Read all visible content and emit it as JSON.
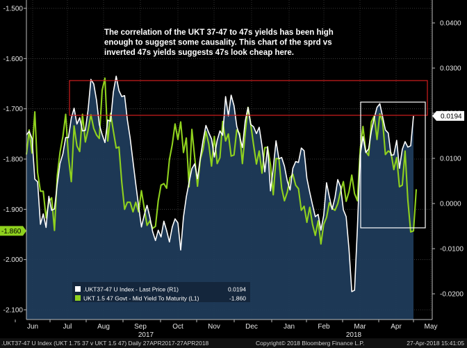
{
  "chart_data": {
    "type": "line",
    "annotation": "The correlation of the UKT 37-47 to 47s yields has been high enough to suggest some causality. This chart of the sprd vs inverted 47s yields suggests 47s look cheap here.",
    "x_axis": {
      "months": [
        "Jun",
        "Jul",
        "Aug",
        "Sep",
        "Oct",
        "Nov",
        "Dec",
        "Jan",
        "Feb",
        "Mar",
        "Apr",
        "May"
      ],
      "years": [
        "2017",
        "2018"
      ]
    },
    "left_axis": {
      "ticks": [
        "-1.500",
        "-1.600",
        "-1.700",
        "-1.800",
        "-1.900",
        "-2.000",
        "-2.100"
      ],
      "range": [
        -1.5,
        -2.1
      ],
      "inverted": true,
      "last_value_label": "-1.860"
    },
    "right_axis": {
      "ticks": [
        "0.0400",
        "0.0300",
        "0.0200",
        "0.0100",
        "0.0000",
        "-0.0100",
        "-0.0200"
      ],
      "range": [
        -0.0245,
        0.0435
      ],
      "last_value_label": "0.0194"
    },
    "legend": [
      {
        "label": ".UKT37-47 U Index - Last Price (R1)",
        "value": "0.0194",
        "color": "#ffffff"
      },
      {
        "label": "UKT 1.5 47 Govt - Mid Yield To Maturity (L1)",
        "value": "-1.860",
        "color": "#8fd11e"
      }
    ],
    "series": [
      {
        "name": ".UKT37-47 U Index - Last Price",
        "axis": "right",
        "color": "#ffffff",
        "values": [
          0.0152,
          0.016,
          0.0144,
          0.0054,
          0.0048,
          -0.0046,
          -0.0023,
          -0.0053,
          0.0016,
          -0.0015,
          -0.0012,
          0.0043,
          0.0089,
          0.011,
          0.0146,
          0.0146,
          0.0189,
          0.0211,
          0.0176,
          0.019,
          0.0161,
          0.0162,
          0.0208,
          0.0275,
          0.0265,
          0.0229,
          0.0175,
          0.0153,
          0.0135,
          0.0185,
          0.0182,
          0.0247,
          0.0282,
          0.025,
          0.0237,
          0.0239,
          0.0185,
          0.0145,
          0.0093,
          0.0043,
          -0.0005,
          -0.0052,
          -0.0026,
          -0.0004,
          -0.003,
          -0.0062,
          -0.0082,
          -0.0059,
          -0.0074,
          -0.0039,
          -0.006,
          -0.0085,
          -0.0052,
          -0.0034,
          -0.0043,
          -0.0103,
          -0.003,
          0.0015,
          0.0047,
          0.0077,
          0.0088,
          0.0055,
          0.0101,
          0.0141,
          0.0173,
          0.0157,
          0.0143,
          0.0103,
          0.014,
          0.0161,
          0.0151,
          0.0237,
          0.0194,
          0.024,
          0.0217,
          0.0171,
          0.015,
          0.0124,
          0.0182,
          0.0213,
          0.0175,
          0.017,
          0.0155,
          0.0169,
          0.0128,
          0.007,
          0.0126,
          0.0028,
          0.0078,
          0.0139,
          0.0099,
          0.0102,
          0.0083,
          0.005,
          0.003,
          0.0078,
          0.0093,
          0.0091,
          0.0123,
          0.0117,
          0.0056,
          0.0025,
          -0.0003,
          -0.0029,
          -0.0024,
          -0.0059,
          -0.0026,
          0.0046,
          0.0015,
          -0.0013,
          0.0013,
          0.0053,
          0.0037,
          -0.0014,
          -0.0029,
          -0.0101,
          -0.0195,
          -0.0192,
          -0.0054,
          0.0107,
          0.0148,
          0.0113,
          0.0121,
          0.0161,
          0.0189,
          0.0213,
          0.0221,
          0.0192,
          0.0163,
          0.0156,
          0.0107,
          0.0108,
          0.014,
          0.0078,
          0.012,
          0.0137,
          0.0125,
          0.0128,
          0.0194
        ]
      },
      {
        "name": "UKT 1.5 47 Govt - Mid Yield To Maturity",
        "axis": "left",
        "color": "#8fd11e",
        "values": [
          -1.791,
          -1.742,
          -1.788,
          -1.706,
          -1.827,
          -1.864,
          -1.864,
          -1.917,
          -1.885,
          -1.877,
          -1.942,
          -1.833,
          -1.786,
          -1.755,
          -1.711,
          -1.796,
          -1.845,
          -1.734,
          -1.774,
          -1.785,
          -1.711,
          -1.766,
          -1.742,
          -1.712,
          -1.739,
          -1.752,
          -1.759,
          -1.663,
          -1.639,
          -1.764,
          -1.709,
          -1.744,
          -1.778,
          -1.776,
          -1.846,
          -1.9,
          -1.886,
          -1.886,
          -1.905,
          -1.886,
          -1.905,
          -1.863,
          -1.897,
          -1.932,
          -1.923,
          -1.938,
          -1.934,
          -1.883,
          -1.852,
          -1.849,
          -1.858,
          -1.801,
          -1.771,
          -1.73,
          -1.761,
          -1.726,
          -1.787,
          -1.758,
          -1.855,
          -1.741,
          -1.797,
          -1.854,
          -1.801,
          -1.78,
          -1.745,
          -1.77,
          -1.814,
          -1.755,
          -1.809,
          -1.797,
          -1.725,
          -1.764,
          -1.75,
          -1.794,
          -1.792,
          -1.742,
          -1.749,
          -1.809,
          -1.749,
          -1.697,
          -1.732,
          -1.772,
          -1.81,
          -1.784,
          -1.828,
          -1.777,
          -1.777,
          -1.811,
          -1.871,
          -1.799,
          -1.799,
          -1.858,
          -1.883,
          -1.866,
          -1.837,
          -1.83,
          -1.852,
          -1.859,
          -1.902,
          -1.894,
          -1.926,
          -1.896,
          -1.93,
          -1.952,
          -1.923,
          -1.969,
          -1.93,
          -1.916,
          -1.887,
          -1.898,
          -1.902,
          -1.889,
          -1.864,
          -1.845,
          -1.884,
          -1.865,
          -1.832,
          -1.869,
          -1.883,
          -1.781,
          -1.735,
          -1.785,
          -1.793,
          -1.726,
          -1.714,
          -1.761,
          -1.71,
          -1.725,
          -1.791,
          -1.784,
          -1.788,
          -1.821,
          -1.797,
          -1.855,
          -1.852,
          -1.784,
          -1.882,
          -1.945,
          -1.943,
          -1.86
        ]
      }
    ]
  },
  "footer": {
    "left": ".UKT37-47 U Index (UKT 1.75 37 v UKT 1.5 47)  Daily 27APR2017-27APR2018",
    "center": "Copyright© 2018 Bloomberg Finance L.P.",
    "right": "27-Apr-2018 15:41:05"
  }
}
